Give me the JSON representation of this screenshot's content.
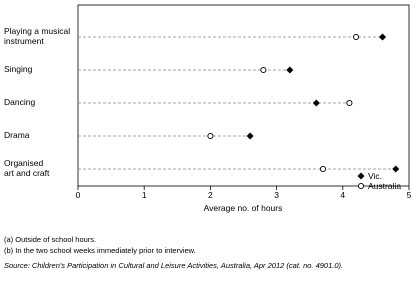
{
  "chart_data": {
    "type": "dot",
    "categories": [
      "Playing a musical\ninstrument",
      "Singing",
      "Dancing",
      "Drama",
      "Organised\nart and craft"
    ],
    "series": [
      {
        "name": "Vic.",
        "color": "#000000",
        "marker": "diamond-filled",
        "values": [
          4.6,
          3.2,
          3.6,
          2.6,
          4.8
        ]
      },
      {
        "name": "Australia",
        "color": "#000000",
        "marker": "circle-open",
        "values": [
          4.2,
          2.8,
          4.1,
          2.0,
          3.7
        ]
      }
    ],
    "xlim": [
      0,
      5
    ],
    "xticks": [
      0,
      1,
      2,
      3,
      4,
      5
    ],
    "xlabel": "Average no. of hours",
    "legend": "bottom-right",
    "footnotes": [
      "(a) Outside of school hours.",
      "(b) In the two school weeks immediately prior to interview."
    ],
    "source": "Source: Children's Participation in Cultural and Leisure Activities, Australia, Apr 2012 (cat. no. 4901.0)."
  }
}
